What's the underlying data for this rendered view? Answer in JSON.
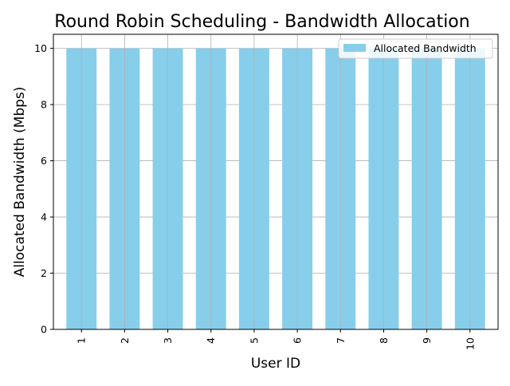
{
  "chart_data": {
    "type": "bar",
    "title": "Round Robin Scheduling - Bandwidth Allocation",
    "xlabel": "User ID",
    "ylabel": "Allocated Bandwidth (Mbps)",
    "categories": [
      "1",
      "2",
      "3",
      "4",
      "5",
      "6",
      "7",
      "8",
      "9",
      "10"
    ],
    "series": [
      {
        "name": "Allocated Bandwidth",
        "values": [
          10,
          10,
          10,
          10,
          10,
          10,
          10,
          10,
          10,
          10
        ]
      }
    ],
    "ylim": [
      0,
      10.5
    ],
    "yticks": [
      "0",
      "2",
      "4",
      "6",
      "8",
      "10"
    ],
    "grid": true,
    "legend_position": "top-right",
    "bar_color": "#87CEEB",
    "grid_color": "#b0b0b0",
    "x_tick_rotation": "vertical"
  }
}
